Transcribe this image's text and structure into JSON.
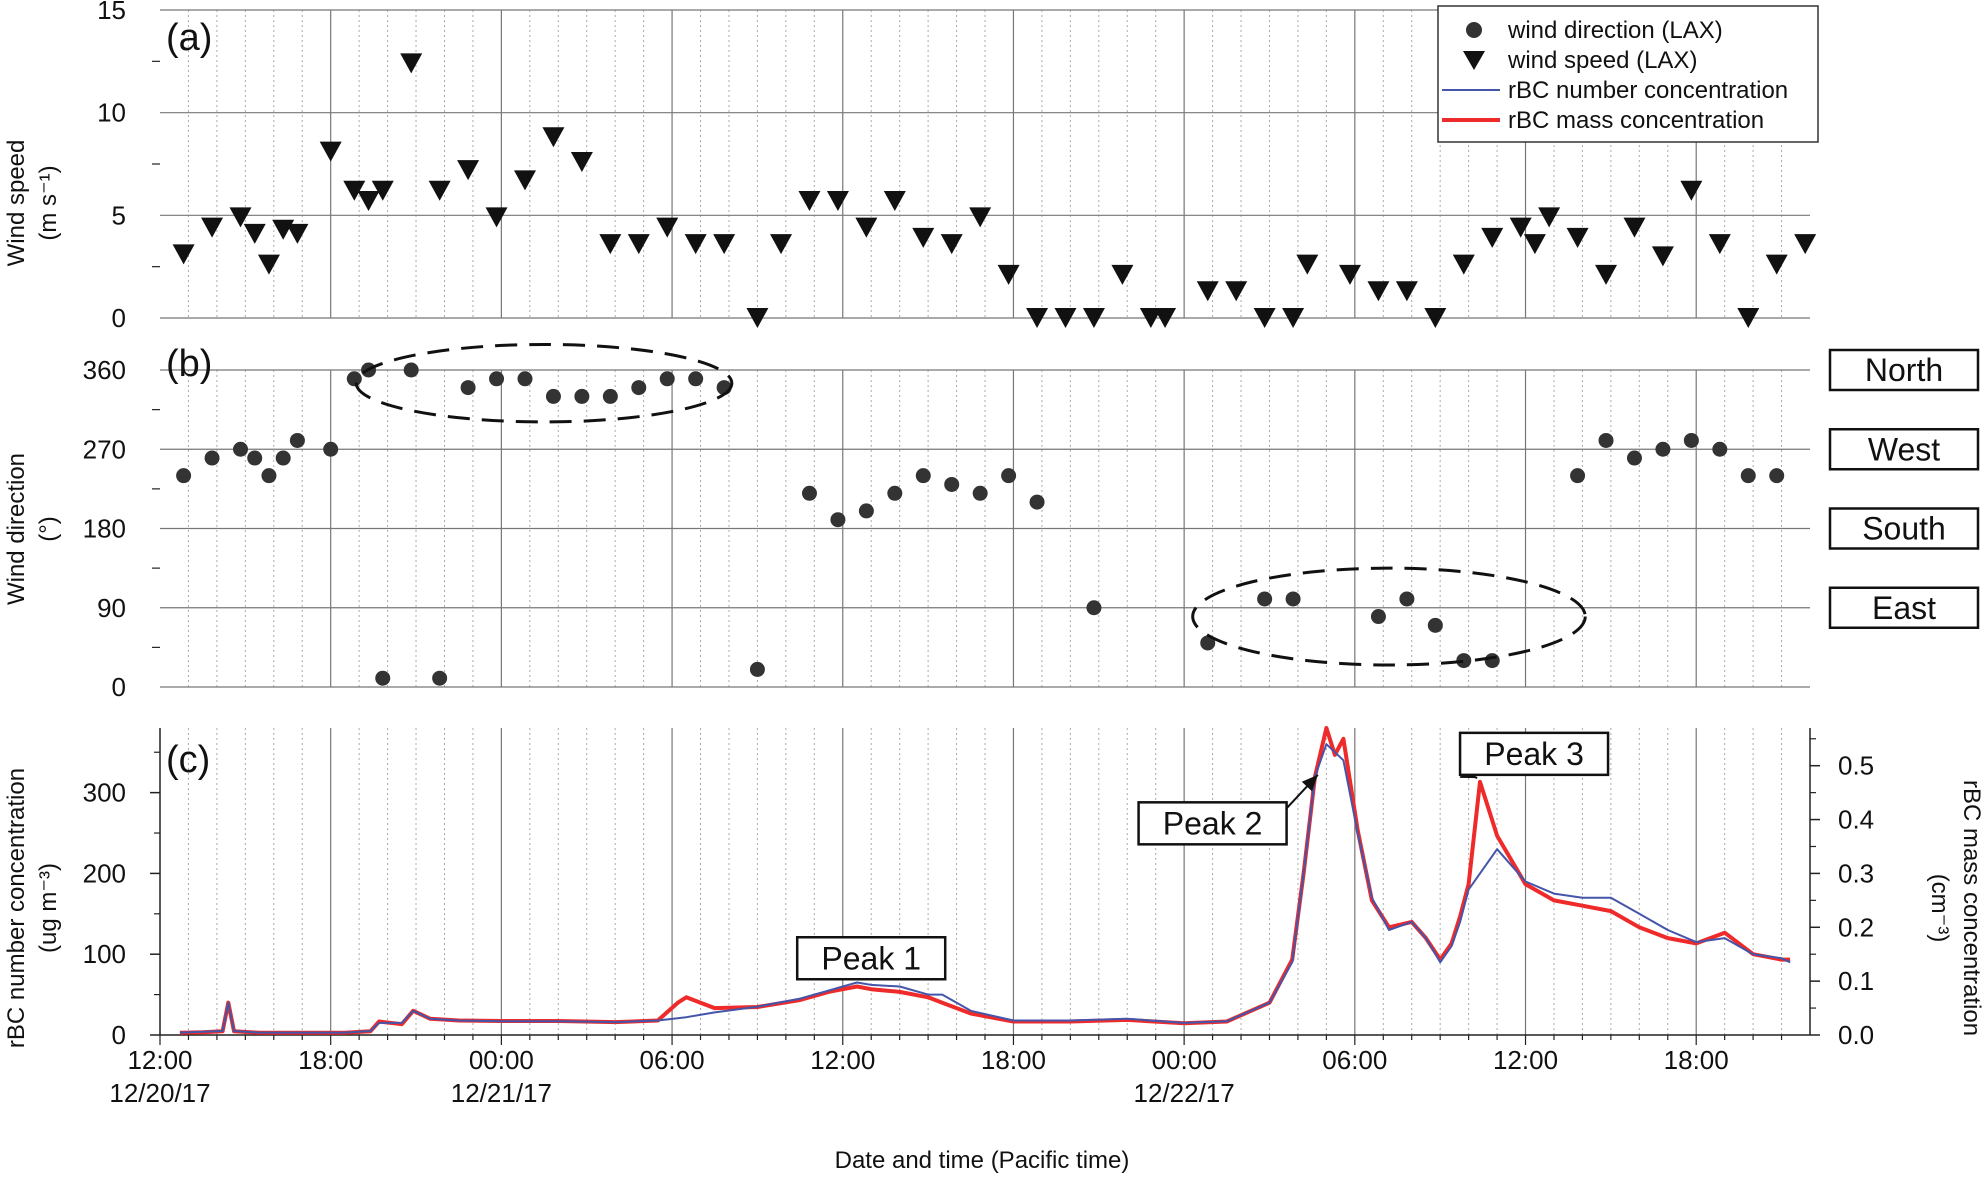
{
  "chart_data": [
    {
      "type": "scatter",
      "panel_label": "(a)",
      "ylabel": "Wind speed",
      "ylabel_unit": "(m s⁻¹)",
      "ylim": [
        0,
        15
      ],
      "yticks": [
        0,
        5,
        10,
        15
      ],
      "grid": true,
      "series": [
        {
          "name": "wind speed (LAX)",
          "marker": "triangle-down",
          "color": "#111111",
          "x": [
            12.83,
            13.83,
            14.83,
            15.33,
            15.83,
            16.33,
            16.83,
            18.0,
            18.83,
            19.33,
            19.83,
            20.83,
            21.83,
            22.83,
            23.83,
            24.83,
            25.83,
            26.83,
            27.83,
            28.83,
            29.83,
            30.83,
            31.83,
            33.0,
            33.83,
            34.83,
            35.83,
            36.83,
            37.83,
            38.83,
            39.83,
            40.83,
            41.83,
            42.83,
            43.83,
            44.83,
            45.83,
            46.83,
            47.33,
            48.83,
            49.83,
            50.83,
            51.83,
            52.33,
            53.83,
            54.83,
            55.83,
            56.83,
            57.83,
            58.83,
            59.83,
            60.33,
            60.83,
            61.83,
            62.83,
            63.83,
            64.83,
            65.83,
            66.83,
            67.83,
            68.83,
            69.83
          ],
          "y": [
            3.1,
            4.4,
            4.9,
            4.1,
            2.6,
            4.3,
            4.1,
            8.1,
            6.2,
            5.7,
            6.2,
            12.4,
            6.2,
            7.2,
            4.9,
            6.7,
            8.8,
            7.6,
            3.6,
            3.6,
            4.4,
            3.6,
            3.6,
            0.0,
            3.6,
            5.7,
            5.7,
            4.4,
            5.7,
            3.9,
            3.6,
            4.9,
            2.1,
            0.0,
            0.0,
            0.0,
            2.1,
            0.0,
            0.0,
            1.3,
            1.3,
            0.0,
            0.0,
            2.6,
            2.1,
            1.3,
            1.3,
            0.0,
            2.6,
            3.9,
            4.4,
            3.6,
            4.9,
            3.9,
            2.1,
            4.4,
            3.0,
            6.2,
            3.6,
            0.0,
            2.6,
            3.6
          ]
        }
      ]
    },
    {
      "type": "scatter",
      "panel_label": "(b)",
      "ylabel": "Wind direction",
      "ylabel_unit": "(°)",
      "ylim": [
        0,
        360
      ],
      "yticks": [
        0,
        90,
        180,
        270,
        360
      ],
      "direction_labels": [
        {
          "text": "North",
          "y": 360
        },
        {
          "text": "West",
          "y": 270
        },
        {
          "text": "South",
          "y": 180
        },
        {
          "text": "East",
          "y": 90
        }
      ],
      "series": [
        {
          "name": "wind direction (LAX)",
          "marker": "circle",
          "color": "#333333",
          "x": [
            12.83,
            13.83,
            14.83,
            15.33,
            15.83,
            16.33,
            16.83,
            18.0,
            18.83,
            19.33,
            19.83,
            20.83,
            21.83,
            22.83,
            23.83,
            24.83,
            25.83,
            26.83,
            27.83,
            28.83,
            29.83,
            30.83,
            31.83,
            33.0,
            34.83,
            35.83,
            36.83,
            37.83,
            38.83,
            39.83,
            40.83,
            41.83,
            42.83,
            44.83,
            48.83,
            50.83,
            51.83,
            54.83,
            55.83,
            56.83,
            57.83,
            58.83,
            61.83,
            62.83,
            63.83,
            64.83,
            65.83,
            66.83,
            67.83,
            68.83
          ],
          "y": [
            240,
            260,
            270,
            260,
            240,
            260,
            280,
            270,
            350,
            360,
            10,
            360,
            10,
            340,
            350,
            350,
            330,
            330,
            330,
            340,
            350,
            350,
            340,
            20,
            220,
            190,
            200,
            220,
            240,
            230,
            220,
            240,
            210,
            90,
            50,
            100,
            100,
            80,
            100,
            70,
            30,
            30,
            240,
            280,
            260,
            270,
            280,
            270,
            240,
            240
          ]
        }
      ],
      "annotations": [
        {
          "shape": "dashed-ellipse",
          "cx_hours": 25.5,
          "cy_deg": 345,
          "rx_hours": 6.6,
          "ry_deg": 44
        },
        {
          "shape": "dashed-ellipse",
          "cx_hours": 55.2,
          "cy_deg": 80,
          "rx_hours": 6.9,
          "ry_deg": 55
        }
      ]
    },
    {
      "type": "line",
      "panel_label": "(c)",
      "ylabel": "rBC number concentration",
      "ylabel_unit": "(ug m⁻³)",
      "ylabel_right": "rBC mass concentration",
      "ylabel_right_unit": "(cm⁻³)",
      "ylim": [
        0,
        380
      ],
      "yticks": [
        0,
        100,
        200,
        300
      ],
      "ylim_right": [
        0,
        0.57
      ],
      "yticks_right": [
        "0.0",
        "0.1",
        "0.2",
        "0.3",
        "0.4",
        "0.5"
      ],
      "xlabel": "Date and time (Pacific time)",
      "x_unit": "hours since 12/20/17 00:00",
      "xlim": [
        12,
        70
      ],
      "xticks": [
        {
          "value": 12,
          "line1": "12:00",
          "line2": "12/20/17"
        },
        {
          "value": 18,
          "line1": "18:00",
          "line2": ""
        },
        {
          "value": 24,
          "line1": "00:00",
          "line2": "12/21/17"
        },
        {
          "value": 30,
          "line1": "06:00",
          "line2": ""
        },
        {
          "value": 36,
          "line1": "12:00",
          "line2": ""
        },
        {
          "value": 42,
          "line1": "18:00",
          "line2": ""
        },
        {
          "value": 48,
          "line1": "00:00",
          "line2": "12/22/17"
        },
        {
          "value": 54,
          "line1": "06:00",
          "line2": ""
        },
        {
          "value": 60,
          "line1": "12:00",
          "line2": ""
        },
        {
          "value": 66,
          "line1": "18:00",
          "line2": ""
        }
      ],
      "series": [
        {
          "name": "rBC number concentration",
          "color": "#4455aa",
          "x": [
            12.7,
            13.5,
            14.2,
            14.4,
            14.6,
            15.5,
            16.5,
            17.5,
            18.5,
            19.4,
            19.7,
            20.5,
            20.9,
            21.5,
            22.5,
            24,
            26,
            28,
            29.5,
            30.5,
            31.5,
            33,
            34.5,
            35.5,
            36,
            36.5,
            37,
            38,
            39,
            39.5,
            40.5,
            42,
            44,
            46,
            48,
            49.5,
            51,
            51.8,
            52.2,
            52.6,
            53.0,
            53.3,
            53.6,
            54.1,
            54.6,
            55.2,
            56.0,
            56.5,
            57.0,
            57.4,
            57.7,
            58.0,
            58.4,
            59.0,
            60.0,
            61.0,
            62.0,
            63.0,
            64.0,
            65.0,
            66.0,
            67.0,
            68.0,
            69.0,
            69.3
          ],
          "y": [
            3,
            4,
            5,
            40,
            5,
            3,
            3,
            3,
            3,
            5,
            15,
            15,
            30,
            20,
            18,
            17,
            17,
            16,
            18,
            22,
            28,
            35,
            45,
            55,
            60,
            65,
            62,
            60,
            50,
            50,
            30,
            18,
            18,
            20,
            15,
            17,
            40,
            90,
            200,
            320,
            360,
            350,
            340,
            250,
            170,
            130,
            140,
            120,
            90,
            110,
            140,
            180,
            200,
            230,
            190,
            175,
            170,
            170,
            150,
            130,
            115,
            120,
            100,
            95,
            90
          ]
        },
        {
          "name": "rBC mass concentration",
          "color": "#ee2a2a",
          "x": [
            12.7,
            13.5,
            14.2,
            14.4,
            14.6,
            15.5,
            16.5,
            17.5,
            18.5,
            19.4,
            19.7,
            20.5,
            20.9,
            21.5,
            22.5,
            24,
            26,
            28,
            29.5,
            30.2,
            30.5,
            31,
            31.5,
            33,
            34.5,
            35.5,
            36,
            36.5,
            37,
            38,
            39,
            39.5,
            40.5,
            42,
            44,
            46,
            48,
            49.5,
            51,
            51.8,
            52.2,
            52.6,
            53.0,
            53.3,
            53.6,
            54.1,
            54.6,
            55.2,
            56.0,
            56.5,
            57.0,
            57.4,
            57.7,
            58.0,
            58.4,
            59.0,
            60.0,
            61.0,
            62.0,
            63.0,
            64.0,
            65.0,
            66.0,
            67.0,
            68.0,
            69.0,
            69.3
          ],
          "y": [
            0.004,
            0.005,
            0.007,
            0.06,
            0.007,
            0.004,
            0.004,
            0.004,
            0.004,
            0.007,
            0.025,
            0.02,
            0.045,
            0.03,
            0.027,
            0.026,
            0.026,
            0.024,
            0.027,
            0.06,
            0.07,
            0.06,
            0.05,
            0.052,
            0.065,
            0.08,
            0.085,
            0.09,
            0.085,
            0.08,
            0.07,
            0.06,
            0.04,
            0.025,
            0.025,
            0.028,
            0.022,
            0.025,
            0.06,
            0.14,
            0.3,
            0.48,
            0.57,
            0.52,
            0.55,
            0.38,
            0.25,
            0.2,
            0.21,
            0.18,
            0.14,
            0.17,
            0.22,
            0.28,
            0.47,
            0.37,
            0.28,
            0.25,
            0.24,
            0.23,
            0.2,
            0.18,
            0.17,
            0.19,
            0.15,
            0.14,
            0.14
          ]
        }
      ],
      "annotations": [
        {
          "text": "Peak 1",
          "box_x": 37.0,
          "box_y": 95
        },
        {
          "text": "Peak 2",
          "box_x": 49.0,
          "box_y": 262,
          "arrow_to_x": 52.7,
          "arrow_to_y": 322
        },
        {
          "text": "Peak 3",
          "box_x": 60.3,
          "box_y": 348,
          "arrow_to_x": 58.3,
          "arrow_to_y": 318
        }
      ]
    }
  ],
  "legend": {
    "placement": "top-right",
    "items": [
      {
        "label": "wind direction (LAX)",
        "symbol": "circle",
        "color": "#333333"
      },
      {
        "label": "wind speed (LAX)",
        "symbol": "triangle-down",
        "color": "#111111"
      },
      {
        "label": "rBC number concentration",
        "symbol": "line",
        "color": "#4455aa"
      },
      {
        "label": "rBC mass concentration",
        "symbol": "line",
        "color": "#ee2a2a"
      }
    ]
  }
}
